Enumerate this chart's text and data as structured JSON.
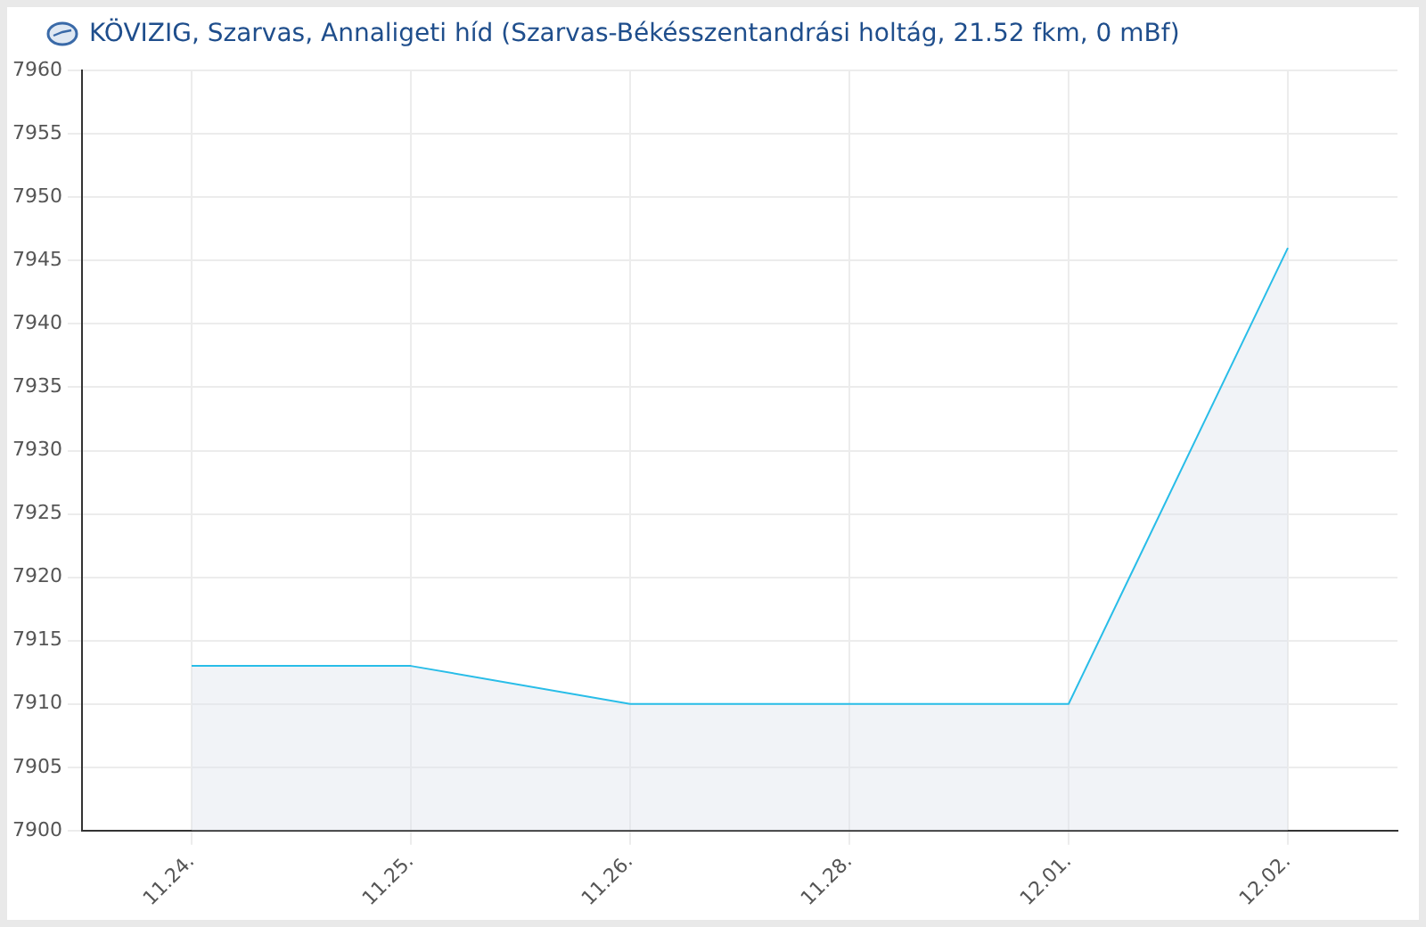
{
  "chart_data": {
    "type": "area",
    "title": "KÖVIZIG, Szarvas, Annaligeti híd (Szarvas-Békésszentandrási holtág, 21.52 fkm, 0 mBf)",
    "categories": [
      "11.24.",
      "11.25.",
      "11.26.",
      "11.28.",
      "12.01.",
      "12.02."
    ],
    "series": [
      {
        "color": "#29bde8",
        "values": [
          7913,
          7913,
          7910,
          7910,
          7910,
          7946
        ]
      }
    ],
    "ylim": [
      7900,
      7960
    ],
    "yticks": [
      7900,
      7905,
      7910,
      7915,
      7920,
      7925,
      7930,
      7935,
      7940,
      7945,
      7950,
      7955,
      7960
    ],
    "grid": true,
    "legend": false,
    "marker": "none",
    "line_style": "solid"
  }
}
